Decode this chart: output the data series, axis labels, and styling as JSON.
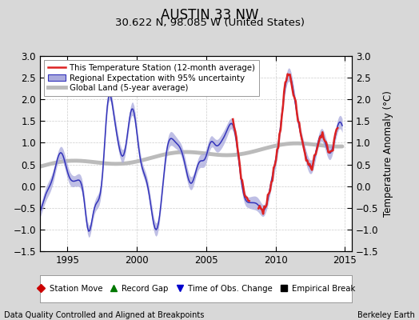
{
  "title": "AUSTIN 33 NW",
  "subtitle": "30.622 N, 98.085 W (United States)",
  "ylabel": "Temperature Anomaly (°C)",
  "xlabel_left": "Data Quality Controlled and Aligned at Breakpoints",
  "xlabel_right": "Berkeley Earth",
  "xlim": [
    1993.0,
    2015.5
  ],
  "ylim": [
    -1.5,
    3.0
  ],
  "yticks": [
    -1.5,
    -1.0,
    -0.5,
    0.0,
    0.5,
    1.0,
    1.5,
    2.0,
    2.5,
    3.0
  ],
  "xticks": [
    1995,
    2000,
    2005,
    2010,
    2015
  ],
  "regional_color": "#3333bb",
  "regional_fill_color": "#aaaadd",
  "station_color": "#dd2222",
  "global_color": "#bbbbbb",
  "background_color": "#d8d8d8",
  "plot_bg_color": "#ffffff",
  "legend1_entries": [
    "This Temperature Station (12-month average)",
    "Regional Expectation with 95% uncertainty",
    "Global Land (5-year average)"
  ],
  "legend2_entries": [
    "Station Move",
    "Record Gap",
    "Time of Obs. Change",
    "Empirical Break"
  ],
  "title_fontsize": 12,
  "subtitle_fontsize": 9.5,
  "tick_fontsize": 8.5,
  "label_fontsize": 8.5
}
